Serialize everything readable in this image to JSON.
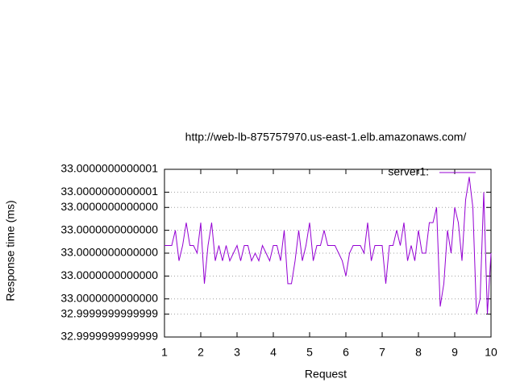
{
  "chart_data": {
    "type": "line",
    "title": "http://web-lb-875757970.us-east-1.elb.amazonaws.com/",
    "x_label": "Request",
    "y_label": "Response time (ms)",
    "x": [
      1,
      1.1,
      1.2,
      1.3,
      1.4,
      1.5,
      1.6,
      1.7,
      1.8,
      1.9,
      2,
      2.1,
      2.2,
      2.3,
      2.4,
      2.5,
      2.6,
      2.7,
      2.8,
      2.9,
      3,
      3.1,
      3.2,
      3.3,
      3.4,
      3.5,
      3.6,
      3.7,
      3.8,
      3.9,
      4,
      4.1,
      4.2,
      4.3,
      4.4,
      4.5,
      4.6,
      4.7,
      4.8,
      4.9,
      5,
      5.1,
      5.2,
      5.3,
      5.4,
      5.5,
      5.6,
      5.7,
      5.8,
      5.9,
      6,
      6.1,
      6.2,
      6.3,
      6.4,
      6.5,
      6.6,
      6.7,
      6.8,
      6.9,
      7,
      7.1,
      7.2,
      7.3,
      7.4,
      7.5,
      7.6,
      7.7,
      7.8,
      7.9,
      8,
      8.1,
      8.2,
      8.3,
      8.4,
      8.5,
      8.6,
      8.7,
      8.8,
      8.9,
      9,
      9.1,
      9.2,
      9.3,
      9.4,
      9.5,
      9.6,
      9.7,
      9.8,
      9.9,
      10
    ],
    "series": [
      {
        "name": "server1:",
        "color": "#9400d3",
        "values": [
          33.00000000000001,
          33.00000000000001,
          33.00000000000001,
          33.00000000000002,
          32.99999999999999,
          33.00000000000001,
          33.00000000000003,
          33.00000000000001,
          33.00000000000001,
          33,
          33.00000000000003,
          32.99999999999997,
          33.00000000000001,
          33.00000000000003,
          32.99999999999999,
          33.00000000000001,
          32.99999999999999,
          33.00000000000001,
          32.99999999999999,
          33,
          33.00000000000001,
          32.99999999999999,
          33.00000000000001,
          33.00000000000001,
          32.99999999999999,
          33,
          32.99999999999999,
          33.00000000000001,
          33,
          32.99999999999999,
          33.00000000000001,
          33.00000000000001,
          32.99999999999999,
          33.00000000000002,
          32.99999999999997,
          32.99999999999997,
          32.99999999999999,
          33.00000000000002,
          32.99999999999999,
          33.00000000000001,
          33.00000000000003,
          32.99999999999999,
          33.00000000000001,
          33.00000000000001,
          33.00000000000002,
          33.00000000000001,
          33.00000000000001,
          33.00000000000001,
          33,
          32.99999999999999,
          32.99999999999998,
          33,
          33.00000000000001,
          33.00000000000001,
          33.00000000000001,
          33,
          33.00000000000003,
          32.99999999999999,
          33.00000000000001,
          33.00000000000001,
          33.00000000000001,
          32.99999999999997,
          33.00000000000001,
          33.00000000000001,
          33.00000000000002,
          33.00000000000001,
          33.00000000000003,
          32.99999999999999,
          33.00000000000001,
          32.99999999999999,
          33.00000000000002,
          33,
          33,
          33.00000000000003,
          33.00000000000003,
          33.00000000000004,
          32.99999999999995,
          32.99999999999997,
          33.00000000000002,
          33,
          33.00000000000004,
          33.00000000000003,
          32.99999999999999,
          33.00000000000005,
          33.00000000000007,
          33.00000000000004,
          32.99999999999994,
          32.99999999999996,
          33.00000000000006,
          32.99999999999994,
          33
        ]
      }
    ],
    "xlim": [
      1,
      10
    ],
    "xticks": [
      1,
      2,
      3,
      4,
      5,
      6,
      7,
      8,
      9,
      10
    ],
    "ylim": [
      32.99999999999992,
      33.00000000000008
    ],
    "yticks": [
      {
        "value": 32.99999999999992,
        "label": "32.9999999999999"
      },
      {
        "value": 32.99999999999994,
        "label": "32.9999999999999"
      },
      {
        "value": 32.99999999999996,
        "label": "33.0000000000000"
      },
      {
        "value": 32.99999999999998,
        "label": "33.0000000000000"
      },
      {
        "value": 33,
        "label": "33.0000000000000"
      },
      {
        "value": 33.00000000000002,
        "label": "33.0000000000000"
      },
      {
        "value": 33.00000000000004,
        "label": "33.0000000000000"
      },
      {
        "value": 33.00000000000006,
        "label": "33.0000000000001"
      },
      {
        "value": 33.00000000000008,
        "label": "33.0000000000001"
      }
    ],
    "grid": true,
    "legend": "top-right"
  }
}
